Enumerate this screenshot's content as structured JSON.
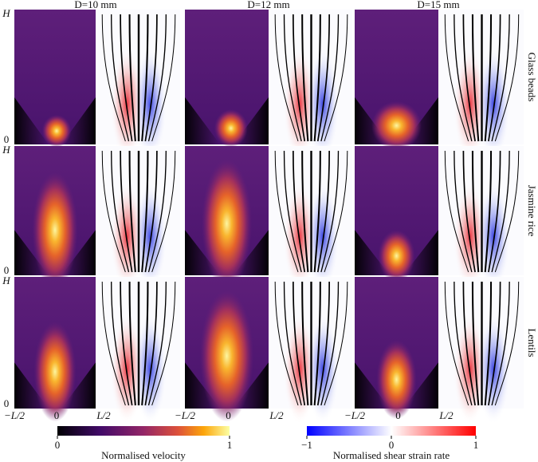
{
  "columns": [
    "D=10 mm",
    "D=12 mm",
    "D=15 mm"
  ],
  "rows": [
    {
      "label": "Glass beads",
      "y_top": "H",
      "y_bottom": "0"
    },
    {
      "label": "Jasmine rice",
      "y_top": "H",
      "y_bottom": "0"
    },
    {
      "label": "Lentils",
      "y_top": "H",
      "y_bottom": "0"
    }
  ],
  "x_axis": [
    [
      "−L/2",
      "0",
      "L/2"
    ],
    [
      "−L/2",
      "0",
      "L/2"
    ],
    [
      "−L/2",
      "0",
      "L/2"
    ]
  ],
  "colorbars": [
    {
      "title": "Normalised velocity",
      "ticks": [
        "0",
        "1"
      ]
    },
    {
      "title": "Normalised shear strain rate",
      "ticks": [
        "−1",
        "0",
        "1"
      ]
    }
  ]
}
